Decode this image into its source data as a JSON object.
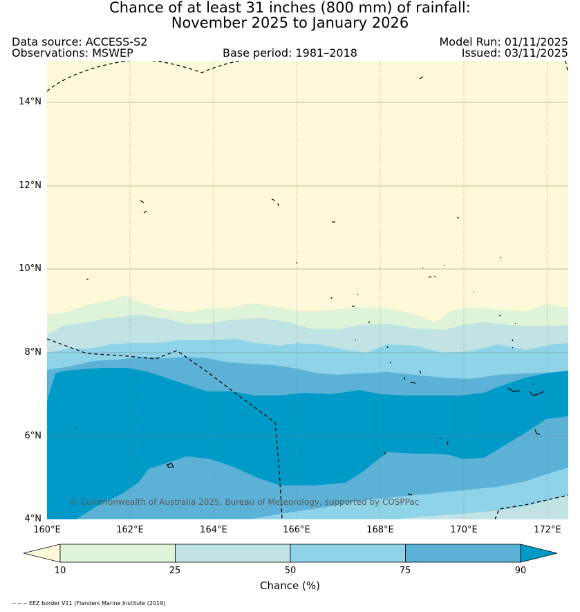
{
  "title": {
    "line1": "Chance of at least 31 inches (800  mm) of rainfall:",
    "line2": "November 2025 to January 2026"
  },
  "meta": {
    "data_source": "Data source: ACCESS-S2",
    "observations": "Observations: MSWEP",
    "base_period": "Base period: 1981–2018",
    "model_run": "Model Run: 01/11/2025",
    "issued": "Issued: 03/11/2025"
  },
  "axes": {
    "lat_labels": [
      "14°N",
      "12°N",
      "10°N",
      "8°N",
      "6°N",
      "4°N"
    ],
    "lon_labels": [
      "160°E",
      "162°E",
      "164°E",
      "166°E",
      "168°E",
      "170°E",
      "172°E"
    ]
  },
  "colors": {
    "c0": "#fdf9d8",
    "c1": "#dff3d8",
    "c2": "#c1e3e3",
    "c3": "#8fd3e9",
    "c4": "#5cb2d6",
    "c5": "#009ac8",
    "boundary": "#000000"
  },
  "colorbar": {
    "ticks": [
      "10",
      "25",
      "50",
      "75",
      "90"
    ],
    "label": "Chance (%)"
  },
  "copyright": "© Commonwealth of Australia 2025, Bureau of Meteorology, supported by COSPPac",
  "footnote": "-- -- -- EEZ border V11 (Flanders Marine Institute (2019)"
}
